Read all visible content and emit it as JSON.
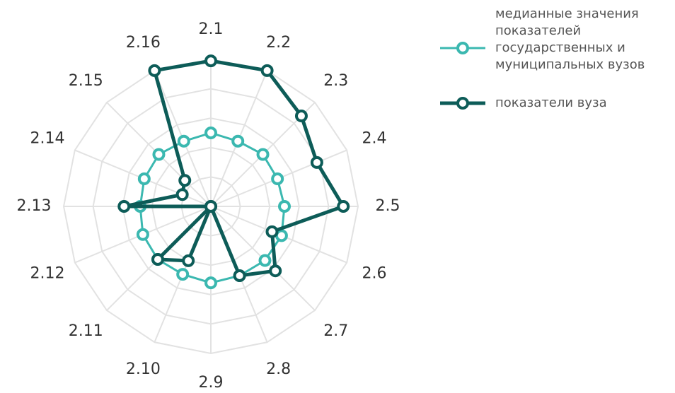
{
  "chart_data": {
    "type": "radar",
    "categories": [
      "2.1",
      "2.2",
      "2.3",
      "2.4",
      "2.5",
      "2.6",
      "2.7",
      "2.8",
      "2.9",
      "2.10",
      "2.11",
      "2.12",
      "2.13",
      "2.14",
      "2.15",
      "2.16"
    ],
    "rlim": [
      0,
      100
    ],
    "rticks": [
      20,
      40,
      60,
      80,
      100
    ],
    "grid": true,
    "series": [
      {
        "name": "медианные значения показателей государственных и муниципальных вузов",
        "color": "#3bb8b0",
        "values": [
          50,
          48,
          50,
          49,
          50,
          52,
          52,
          51,
          52,
          50,
          51,
          50,
          48,
          49,
          50,
          48
        ]
      },
      {
        "name": "показатели вуза",
        "color": "#0d5c58",
        "values": [
          99,
          100,
          87,
          78,
          90,
          45,
          62,
          51,
          0,
          40,
          51,
          0,
          59,
          21,
          25,
          100
        ]
      }
    ]
  }
}
